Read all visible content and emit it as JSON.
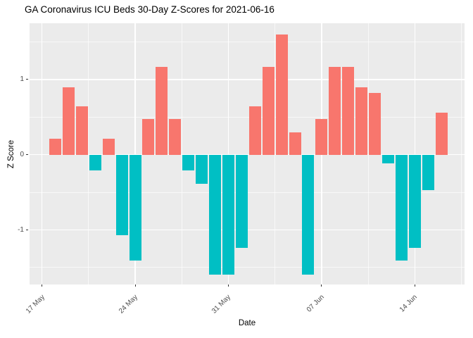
{
  "title": "GA Coronavirus ICU Beds 30-Day Z-Scores for 2021-06-16",
  "chart_data": {
    "type": "bar",
    "title": "GA Coronavirus ICU Beds 30-Day Z-Scores for 2021-06-16",
    "xlabel": "Date",
    "ylabel": "Z Score",
    "x": [
      "2021-05-18",
      "2021-05-19",
      "2021-05-20",
      "2021-05-21",
      "2021-05-22",
      "2021-05-23",
      "2021-05-24",
      "2021-05-25",
      "2021-05-26",
      "2021-05-27",
      "2021-05-28",
      "2021-05-29",
      "2021-05-30",
      "2021-05-31",
      "2021-06-01",
      "2021-06-02",
      "2021-06-03",
      "2021-06-04",
      "2021-06-05",
      "2021-06-06",
      "2021-06-07",
      "2021-06-08",
      "2021-06-09",
      "2021-06-10",
      "2021-06-11",
      "2021-06-12",
      "2021-06-13",
      "2021-06-14",
      "2021-06-15",
      "2021-06-16"
    ],
    "values": [
      0.21,
      0.9,
      0.64,
      -0.21,
      0.21,
      -1.07,
      -1.41,
      0.47,
      1.17,
      0.47,
      -0.21,
      -0.39,
      -1.6,
      -1.6,
      -1.24,
      0.64,
      1.17,
      1.6,
      0.3,
      -1.6,
      0.47,
      1.17,
      1.17,
      0.9,
      0.82,
      -0.12,
      -1.41,
      -1.24,
      -0.47,
      0.56
    ],
    "x_tick_labels": [
      "17 May",
      "24 May",
      "31 May",
      "07 Jun",
      "14 Jun"
    ],
    "x_tick_day_offsets": [
      -1,
      6,
      13,
      20,
      27
    ],
    "x_minor_day_offsets": [
      2.5,
      9.5,
      16.5,
      23.5,
      30.5
    ],
    "y_tick_labels": [
      "-1",
      "0",
      "1"
    ],
    "y_ticks": [
      -1,
      0,
      1
    ],
    "y_minor_ticks": [
      -1.5,
      -0.5,
      0.5,
      1.5
    ],
    "ylim": [
      -1.73,
      1.75
    ],
    "positive_color": "#F8766D",
    "negative_color": "#00BFC4",
    "panel_bg": "#EBEBEB",
    "grid_color": "#FFFFFF",
    "legend": "none",
    "grid": "on"
  }
}
